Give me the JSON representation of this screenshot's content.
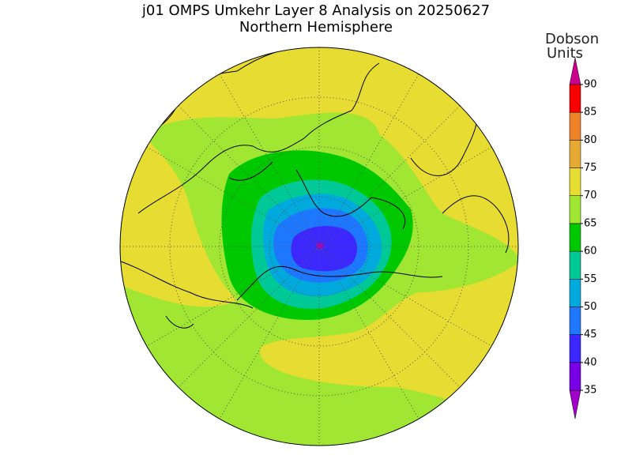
{
  "header": {
    "title": "j01 OMPS Umkehr Layer 8 Analysis on 20250627",
    "subtitle": "Northern Hemisphere"
  },
  "colorbar": {
    "title": [
      "Dobson",
      "Units"
    ],
    "ticks": [
      35,
      40,
      45,
      50,
      55,
      60,
      65,
      70,
      75,
      80,
      85,
      90
    ],
    "colors": [
      "#a000c8",
      "#7800e6",
      "#3c28ff",
      "#1e78ff",
      "#00aadc",
      "#00c896",
      "#00c800",
      "#a0e632",
      "#e6dc32",
      "#e6aa32",
      "#f08228",
      "#fa0000",
      "#c8008c"
    ]
  }
}
